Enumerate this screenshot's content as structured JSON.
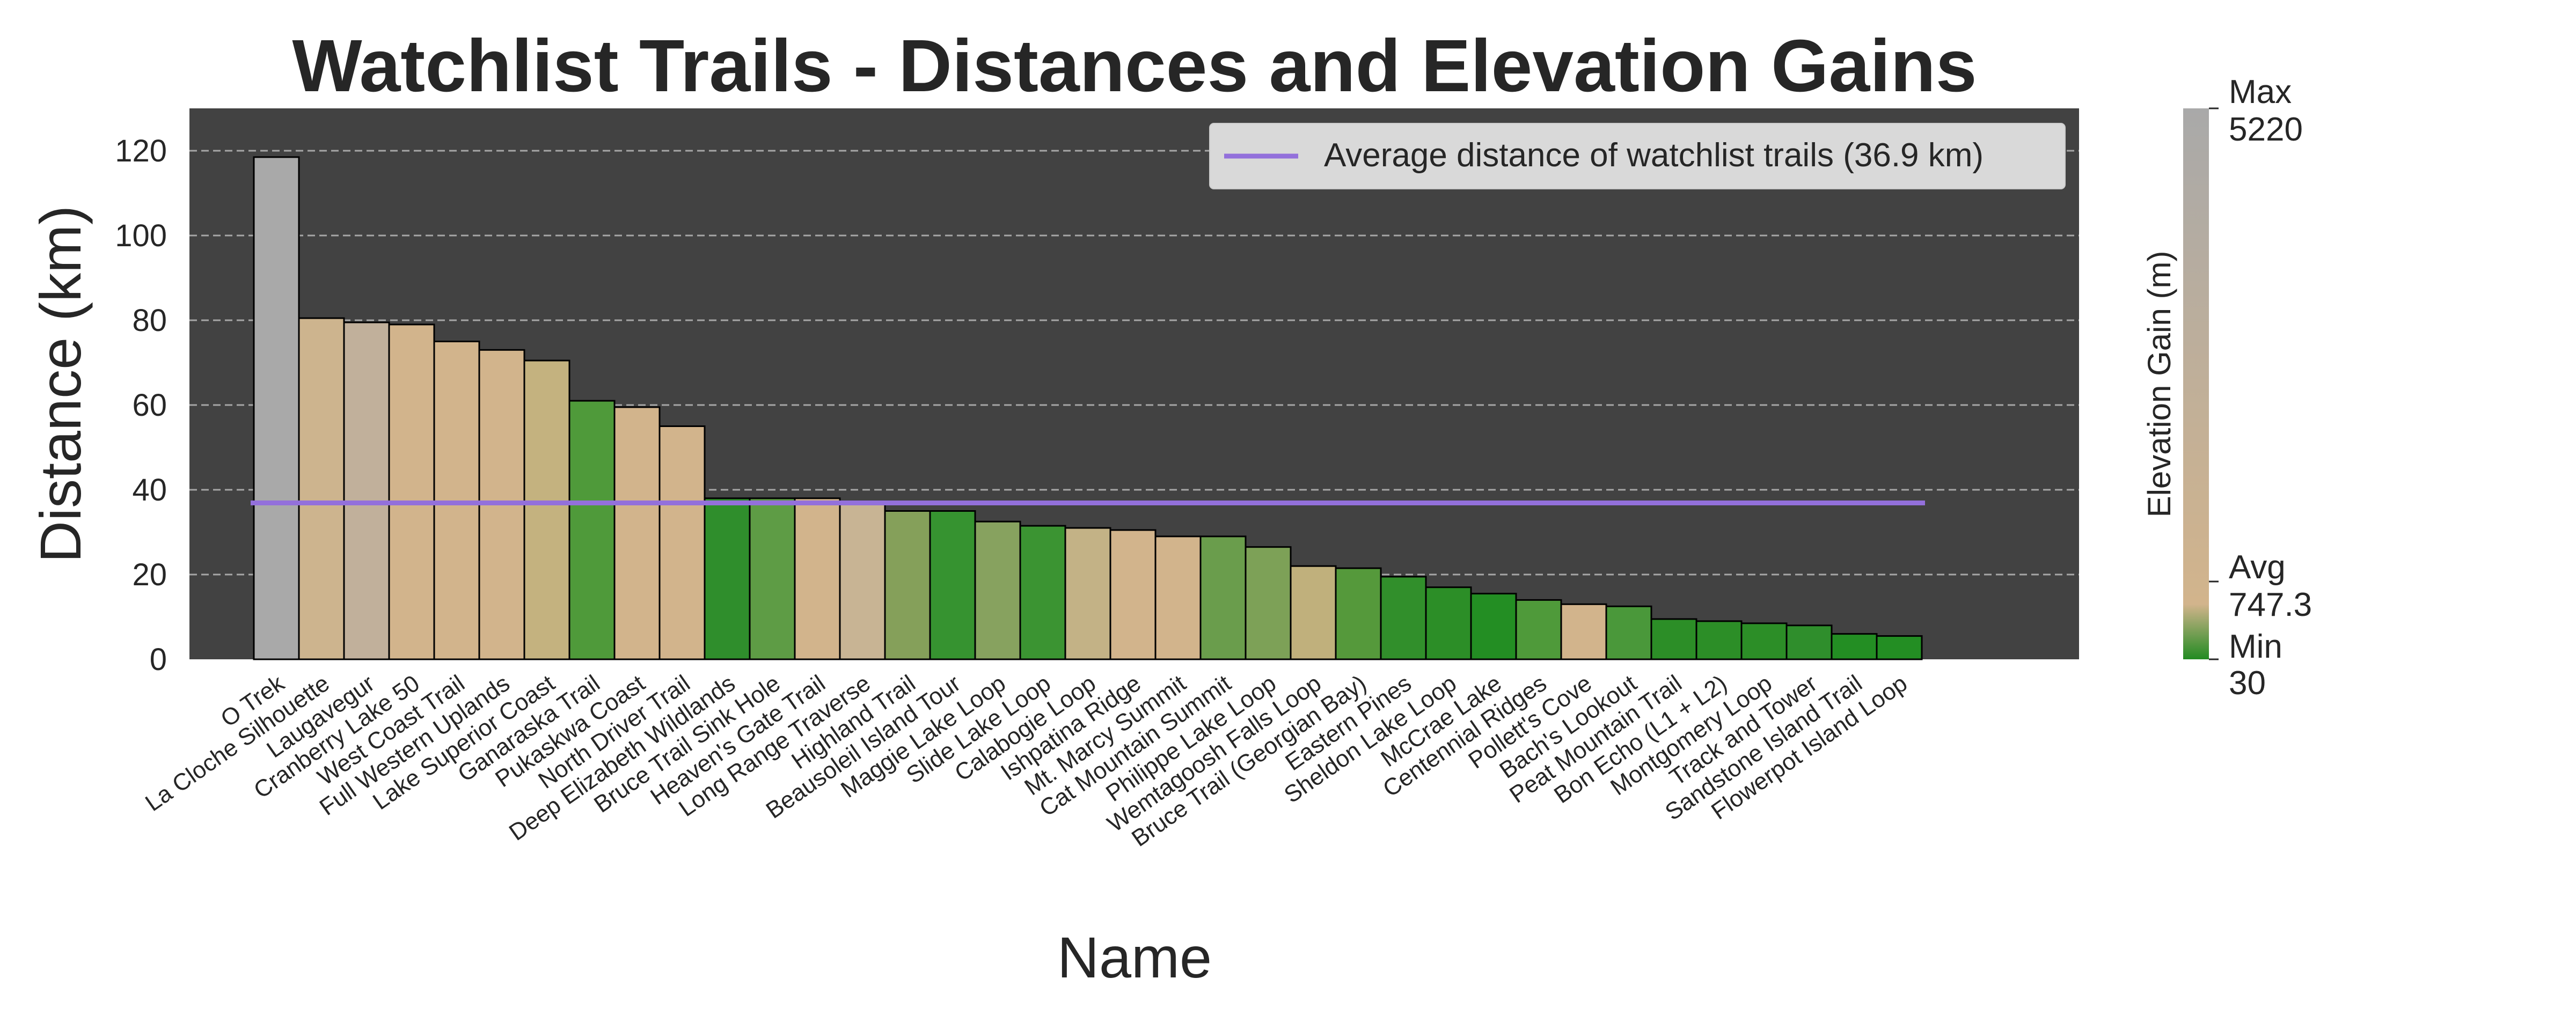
{
  "chart_data": {
    "type": "bar",
    "title": "Watchlist Trails - Distances and Elevation Gains",
    "xlabel": "Name",
    "ylabel": "Distance (km)",
    "ylim": [
      0,
      130
    ],
    "yticks": [
      0,
      20,
      40,
      60,
      80,
      100,
      120
    ],
    "grid": true,
    "legend_position": "top-right",
    "categories": [
      "O Trek",
      "La Cloche Silhouette",
      "Laugavegur",
      "Cranberry Lake 50",
      "West Coast Trail",
      "Full Western Uplands",
      "Lake Superior Coast",
      "Ganaraska Trail",
      "Pukaskwa Coast",
      "North Driver Trail",
      "Deep Elizabeth Wildlands",
      "Bruce Trail Sink Hole",
      "Heaven's Gate Trail",
      "Long Range Traverse",
      "Highland Trail",
      "Beausoleil Island Tour",
      "Maggie Lake Loop",
      "Slide Lake Loop",
      "Calabogie Loop",
      "Ishpatina Ridge",
      "Mt. Marcy Summit",
      "Cat Mountain Summit",
      "Philippe Lake Loop",
      "Wemtagoosh Falls Loop",
      "Bruce Trail (Georgian Bay)",
      "Eastern Pines",
      "Sheldon Lake Loop",
      "McCrae Lake",
      "Centennial Ridges",
      "Pollett's Cove",
      "Bach's Lookout",
      "Peat Mountain Trail",
      "Bon Echo (L1 + L2)",
      "Montgomery Loop",
      "Track and Tower",
      "Sandstone Island Trail",
      "Flowerpot Island Loop"
    ],
    "values": [
      118.5,
      80.5,
      79.5,
      79,
      75,
      73,
      70.5,
      61,
      59.5,
      55,
      38,
      38,
      38,
      37,
      35,
      35,
      32.5,
      31.5,
      31,
      30.5,
      29,
      29,
      26.5,
      22,
      21.5,
      19.5,
      17,
      15.5,
      14,
      13,
      12.5,
      9.5,
      9,
      8.5,
      8,
      6,
      5.5
    ],
    "series": [
      {
        "name": "Average distance of watchlist trails (36.9 km)",
        "type": "hline",
        "value": 36.9,
        "color": "#9370db"
      }
    ],
    "bar_colors": [
      "#a9a9a9",
      "#cdb48e",
      "#c1b09b",
      "#d2b48c",
      "#d2b48c",
      "#d2b48c",
      "#c4b27f",
      "#4f9a3a",
      "#d2b48c",
      "#d2b48c",
      "#2f8e2c",
      "#5e9c45",
      "#d2b48c",
      "#c8b494",
      "#85a05a",
      "#369330",
      "#87a25f",
      "#3b9432",
      "#c3b286",
      "#d2b48c",
      "#d2b48c",
      "#6a9d4c",
      "#7da157",
      "#c0b07c",
      "#55993b",
      "#318f2b",
      "#2c8e27",
      "#238e23",
      "#4f9a3a",
      "#d2b48c",
      "#4a983a",
      "#2c8e27",
      "#2c8e27",
      "#2c8e27",
      "#2f8e2c",
      "#238e23",
      "#238e23"
    ],
    "colorbar": {
      "label": "Elevation Gain (m)",
      "ticks": [
        {
          "label": "Max",
          "value_label": "5220",
          "value": 5220
        },
        {
          "label": "Avg",
          "value_label": "747.3",
          "value": 747.3
        },
        {
          "label": "Min",
          "value_label": "30",
          "value": 30
        }
      ],
      "colors": {
        "min": "#228b22",
        "avg": "#d2b48c",
        "max": "#a9a9a9"
      }
    },
    "colors": {
      "plot_bg": "#424242",
      "bar_edge": "#000000",
      "grid": "#a6a6a6"
    }
  }
}
